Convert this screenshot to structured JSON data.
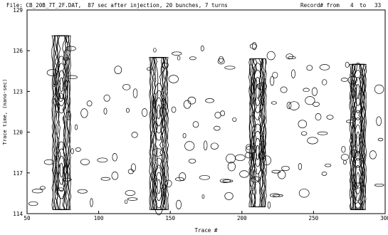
{
  "header": {
    "file_info": "File: CB_20B_7T_2F.DAT,  87 sec after injection, 20 bunches, 7 turns",
    "record_label": "Record# from",
    "record_from": "4",
    "record_to_label": "to",
    "record_to": "33"
  },
  "chart_data": {
    "type": "contour",
    "title": "",
    "xlabel": "Trace #",
    "ylabel": "Trace time, (nano-sec)",
    "xlim": [
      50,
      300
    ],
    "ylim": [
      114,
      129
    ],
    "x_ticks": [
      50,
      100,
      150,
      200,
      250,
      300
    ],
    "y_ticks": [
      114,
      117,
      120,
      123,
      126,
      129
    ],
    "line_color": "#000000",
    "grid": false,
    "columns": [
      {
        "x": 74,
        "y_range": [
          114.3,
          127.1
        ],
        "peaks": [
          123.5,
          117.2
        ],
        "strength": 1.0
      },
      {
        "x": 142,
        "y_range": [
          114.3,
          125.5
        ],
        "peaks": [
          121.5,
          116.0
        ],
        "strength": 1.0
      },
      {
        "x": 211,
        "y_range": [
          114.5,
          125.4
        ],
        "peaks": [
          123.0,
          118.5
        ],
        "strength": 0.9
      },
      {
        "x": 281,
        "y_range": [
          114.3,
          125.0
        ],
        "peaks": [
          123.0,
          119.5,
          116.5
        ],
        "strength": 0.85
      }
    ]
  }
}
